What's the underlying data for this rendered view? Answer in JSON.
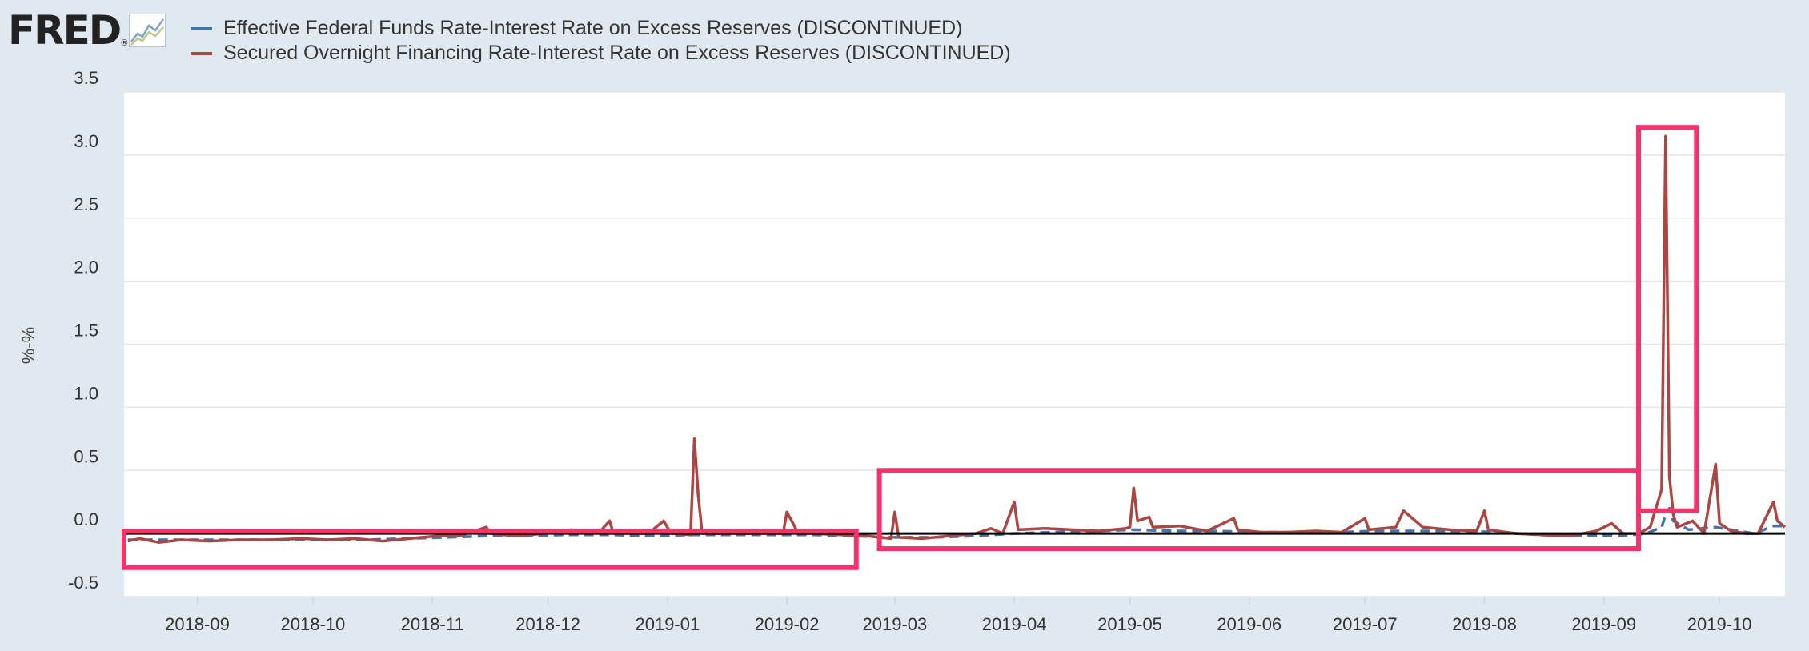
{
  "brand": {
    "name": "FRED",
    "reg": "®",
    "icon": "chart-line-icon"
  },
  "legend": [
    {
      "label": "Effective Federal Funds Rate-Interest Rate on Excess Reserves (DISCONTINUED)",
      "color": "#4572a7"
    },
    {
      "label": "Secured Overnight Financing Rate-Interest Rate on Excess Reserves (DISCONTINUED)",
      "color": "#aa4643"
    }
  ],
  "chart_data": {
    "type": "line",
    "title": "",
    "xlabel": "",
    "ylabel": "%-%",
    "ylim": [
      -0.5,
      3.5
    ],
    "xlim": [
      "2018-08-13",
      "2019-10-18"
    ],
    "grid": true,
    "legend_position": "top-left",
    "yticks": [
      {
        "value": 3.5,
        "label": "3.5"
      },
      {
        "value": 3.0,
        "label": "3.0"
      },
      {
        "value": 2.5,
        "label": "2.5"
      },
      {
        "value": 2.0,
        "label": "2.0"
      },
      {
        "value": 1.5,
        "label": "1.5"
      },
      {
        "value": 1.0,
        "label": "1.0"
      },
      {
        "value": 0.5,
        "label": "0.5"
      },
      {
        "value": 0.0,
        "label": "0.0"
      },
      {
        "value": -0.5,
        "label": "-0.5"
      }
    ],
    "xticks": [
      {
        "date": "2018-09-01",
        "label": "2018-09"
      },
      {
        "date": "2018-10-01",
        "label": "2018-10"
      },
      {
        "date": "2018-11-01",
        "label": "2018-11"
      },
      {
        "date": "2018-12-01",
        "label": "2018-12"
      },
      {
        "date": "2019-01-01",
        "label": "2019-01"
      },
      {
        "date": "2019-02-01",
        "label": "2019-02"
      },
      {
        "date": "2019-03-01",
        "label": "2019-03"
      },
      {
        "date": "2019-04-01",
        "label": "2019-04"
      },
      {
        "date": "2019-05-01",
        "label": "2019-05"
      },
      {
        "date": "2019-06-01",
        "label": "2019-06"
      },
      {
        "date": "2019-07-01",
        "label": "2019-07"
      },
      {
        "date": "2019-08-01",
        "label": "2019-08"
      },
      {
        "date": "2019-09-01",
        "label": "2019-09"
      },
      {
        "date": "2019-10-01",
        "label": "2019-10"
      }
    ],
    "zero_line": 0,
    "series": [
      {
        "name": "Effective Federal Funds Rate-Interest Rate on Excess Reserves (DISCONTINUED)",
        "color": "#4572a7",
        "dashed": true,
        "points": [
          [
            "2018-08-14",
            -0.05
          ],
          [
            "2018-08-20",
            -0.05
          ],
          [
            "2018-08-27",
            -0.05
          ],
          [
            "2018-09-04",
            -0.05
          ],
          [
            "2018-09-14",
            -0.05
          ],
          [
            "2018-09-24",
            -0.05
          ],
          [
            "2018-10-04",
            -0.05
          ],
          [
            "2018-10-15",
            -0.05
          ],
          [
            "2018-10-25",
            -0.04
          ],
          [
            "2018-11-05",
            -0.03
          ],
          [
            "2018-11-15",
            -0.02
          ],
          [
            "2018-11-26",
            -0.02
          ],
          [
            "2018-12-05",
            -0.01
          ],
          [
            "2018-12-17",
            -0.01
          ],
          [
            "2018-12-28",
            -0.02
          ],
          [
            "2019-01-08",
            -0.01
          ],
          [
            "2019-01-18",
            -0.01
          ],
          [
            "2019-01-29",
            -0.01
          ],
          [
            "2019-02-08",
            -0.01
          ],
          [
            "2019-02-19",
            -0.02
          ],
          [
            "2019-02-28",
            -0.03
          ],
          [
            "2019-03-11",
            -0.03
          ],
          [
            "2019-03-21",
            -0.02
          ],
          [
            "2019-04-01",
            0.0
          ],
          [
            "2019-04-11",
            0.01
          ],
          [
            "2019-04-22",
            0.02
          ],
          [
            "2019-05-02",
            0.03
          ],
          [
            "2019-05-13",
            0.02
          ],
          [
            "2019-05-23",
            0.02
          ],
          [
            "2019-06-03",
            0.01
          ],
          [
            "2019-06-13",
            0.01
          ],
          [
            "2019-06-24",
            0.01
          ],
          [
            "2019-07-03",
            0.02
          ],
          [
            "2019-07-15",
            0.02
          ],
          [
            "2019-07-25",
            0.02
          ],
          [
            "2019-08-05",
            0.01
          ],
          [
            "2019-08-15",
            -0.01
          ],
          [
            "2019-08-26",
            -0.02
          ],
          [
            "2019-09-05",
            -0.02
          ],
          [
            "2019-09-12",
            0.0
          ],
          [
            "2019-09-16",
            0.05
          ],
          [
            "2019-09-17",
            0.15
          ],
          [
            "2019-09-18",
            0.2
          ],
          [
            "2019-09-19",
            0.1
          ],
          [
            "2019-09-23",
            0.03
          ],
          [
            "2019-09-30",
            0.05
          ],
          [
            "2019-10-04",
            0.03
          ],
          [
            "2019-10-10",
            0.0
          ],
          [
            "2019-10-15",
            0.06
          ],
          [
            "2019-10-18",
            0.06
          ]
        ]
      },
      {
        "name": "Secured Overnight Financing Rate-Interest Rate on Excess Reserves (DISCONTINUED)",
        "color": "#aa4643",
        "dashed": false,
        "points": [
          [
            "2018-08-14",
            -0.06
          ],
          [
            "2018-08-17",
            -0.04
          ],
          [
            "2018-08-22",
            -0.07
          ],
          [
            "2018-08-28",
            -0.05
          ],
          [
            "2018-09-04",
            -0.06
          ],
          [
            "2018-09-12",
            -0.05
          ],
          [
            "2018-09-20",
            -0.05
          ],
          [
            "2018-09-28",
            -0.04
          ],
          [
            "2018-10-05",
            -0.05
          ],
          [
            "2018-10-12",
            -0.04
          ],
          [
            "2018-10-19",
            -0.06
          ],
          [
            "2018-10-26",
            -0.04
          ],
          [
            "2018-11-02",
            -0.02
          ],
          [
            "2018-11-08",
            -0.02
          ],
          [
            "2018-11-15",
            0.05
          ],
          [
            "2018-11-16",
            0.0
          ],
          [
            "2018-11-23",
            -0.02
          ],
          [
            "2018-11-30",
            0.0
          ],
          [
            "2018-12-07",
            0.03
          ],
          [
            "2018-12-14",
            0.0
          ],
          [
            "2018-12-17",
            0.1
          ],
          [
            "2018-12-18",
            0.0
          ],
          [
            "2018-12-27",
            0.0
          ],
          [
            "2018-12-31",
            0.1
          ],
          [
            "2019-01-02",
            0.0
          ],
          [
            "2019-01-07",
            -0.01
          ],
          [
            "2019-01-08",
            0.75
          ],
          [
            "2019-01-09",
            0.3
          ],
          [
            "2019-01-10",
            0.0
          ],
          [
            "2019-01-17",
            0.0
          ],
          [
            "2019-01-24",
            0.0
          ],
          [
            "2019-01-31",
            0.0
          ],
          [
            "2019-02-01",
            0.17
          ],
          [
            "2019-02-04",
            0.0
          ],
          [
            "2019-02-08",
            0.0
          ],
          [
            "2019-02-15",
            -0.01
          ],
          [
            "2019-02-22",
            -0.02
          ],
          [
            "2019-02-28",
            -0.04
          ],
          [
            "2019-03-01",
            0.17
          ],
          [
            "2019-03-02",
            -0.03
          ],
          [
            "2019-03-08",
            -0.04
          ],
          [
            "2019-03-15",
            -0.02
          ],
          [
            "2019-03-22",
            0.0
          ],
          [
            "2019-03-26",
            0.04
          ],
          [
            "2019-03-29",
            0.0
          ],
          [
            "2019-04-01",
            0.25
          ],
          [
            "2019-04-02",
            0.03
          ],
          [
            "2019-04-09",
            0.04
          ],
          [
            "2019-04-16",
            0.03
          ],
          [
            "2019-04-23",
            0.02
          ],
          [
            "2019-04-30",
            0.04
          ],
          [
            "2019-05-01",
            0.05
          ],
          [
            "2019-05-02",
            0.36
          ],
          [
            "2019-05-03",
            0.1
          ],
          [
            "2019-05-06",
            0.13
          ],
          [
            "2019-05-07",
            0.05
          ],
          [
            "2019-05-14",
            0.06
          ],
          [
            "2019-05-21",
            0.02
          ],
          [
            "2019-05-28",
            0.12
          ],
          [
            "2019-05-29",
            0.03
          ],
          [
            "2019-06-04",
            0.01
          ],
          [
            "2019-06-11",
            0.01
          ],
          [
            "2019-06-18",
            0.02
          ],
          [
            "2019-06-25",
            0.01
          ],
          [
            "2019-07-01",
            0.12
          ],
          [
            "2019-07-02",
            0.03
          ],
          [
            "2019-07-09",
            0.05
          ],
          [
            "2019-07-11",
            0.18
          ],
          [
            "2019-07-16",
            0.05
          ],
          [
            "2019-07-23",
            0.03
          ],
          [
            "2019-07-30",
            0.02
          ],
          [
            "2019-08-01",
            0.18
          ],
          [
            "2019-08-02",
            0.03
          ],
          [
            "2019-08-09",
            0.0
          ],
          [
            "2019-08-16",
            -0.01
          ],
          [
            "2019-08-23",
            -0.02
          ],
          [
            "2019-08-30",
            0.02
          ],
          [
            "2019-09-03",
            0.08
          ],
          [
            "2019-09-06",
            0.0
          ],
          [
            "2019-09-10",
            0.0
          ],
          [
            "2019-09-13",
            0.05
          ],
          [
            "2019-09-16",
            0.35
          ],
          [
            "2019-09-17",
            3.15
          ],
          [
            "2019-09-18",
            0.45
          ],
          [
            "2019-09-19",
            0.15
          ],
          [
            "2019-09-20",
            0.05
          ],
          [
            "2019-09-24",
            0.1
          ],
          [
            "2019-09-27",
            0.0
          ],
          [
            "2019-09-30",
            0.55
          ],
          [
            "2019-10-01",
            0.08
          ],
          [
            "2019-10-04",
            0.02
          ],
          [
            "2019-10-08",
            0.0
          ],
          [
            "2019-10-11",
            0.0
          ],
          [
            "2019-10-15",
            0.25
          ],
          [
            "2019-10-16",
            0.1
          ],
          [
            "2019-10-18",
            0.05
          ]
        ]
      }
    ],
    "highlight_boxes": [
      {
        "x0": "2018-08-13",
        "x1": "2019-02-19",
        "y0": -0.27,
        "y1": 0.02
      },
      {
        "x0": "2019-02-25",
        "x1": "2019-09-10",
        "y0": -0.12,
        "y1": 0.5
      },
      {
        "x0": "2019-09-10",
        "x1": "2019-09-25",
        "y0": 0.18,
        "y1": 3.22
      }
    ]
  }
}
